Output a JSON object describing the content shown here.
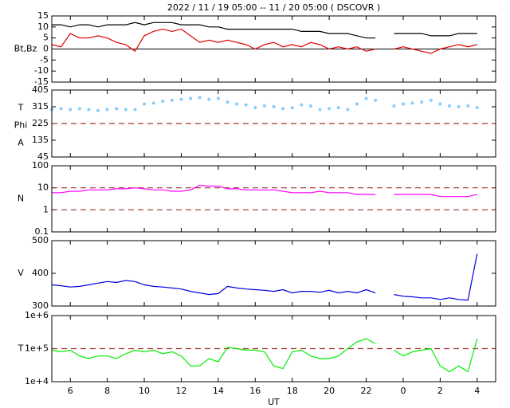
{
  "chart_data": [
    {
      "type": "line",
      "title": "2022 / 11 / 19   05:00 -- 11 / 20   05:00 ( DSCOVR )",
      "ylabel": [
        "Bt,Bz"
      ],
      "x": [
        5,
        5.5,
        6,
        6.5,
        7,
        7.5,
        8,
        8.5,
        9,
        9.5,
        10,
        10.5,
        11,
        11.5,
        12,
        12.5,
        13,
        13.5,
        14,
        14.5,
        15,
        15.5,
        16,
        16.5,
        17,
        17.5,
        18,
        18.5,
        19,
        19.5,
        20,
        20.5,
        21,
        21.5,
        22,
        22.5,
        23,
        23.5,
        24,
        24.5,
        25,
        25.5,
        26,
        26.5,
        27,
        27.5,
        28,
        28.5,
        29
      ],
      "series": [
        {
          "color": "#000000",
          "values": [
            11,
            11,
            10,
            11,
            11,
            10,
            11,
            11,
            11,
            12,
            11,
            12,
            12,
            12,
            11,
            11,
            11,
            10,
            10,
            9,
            9,
            9,
            9,
            9,
            9,
            9,
            9,
            8,
            8,
            8,
            7,
            7,
            7,
            6,
            5,
            5,
            null,
            7,
            7,
            7,
            7,
            6,
            6,
            6,
            7,
            7,
            7,
            null,
            null
          ]
        },
        {
          "color": "#e00000",
          "values": [
            2,
            1,
            7,
            5,
            5,
            6,
            5,
            3,
            2,
            -1,
            6,
            8,
            9,
            8,
            9,
            6,
            3,
            4,
            3,
            4,
            3,
            2,
            0,
            2,
            3,
            1,
            2,
            1,
            3,
            2,
            0,
            1,
            0,
            1,
            -1,
            0,
            null,
            0,
            1,
            0,
            -1,
            -2,
            0,
            1,
            2,
            1,
            2,
            null,
            null
          ]
        }
      ],
      "xlim": [
        5,
        29
      ],
      "ylim": [
        -15,
        15
      ],
      "yticks": [
        -15,
        -10,
        -5,
        0,
        5,
        10,
        15
      ],
      "log": false,
      "zero_line": 0,
      "reflines": []
    },
    {
      "type": "scatter",
      "ylabel": [
        "T",
        "Phi",
        "A"
      ],
      "x": [
        5,
        5.5,
        6,
        6.5,
        7,
        7.5,
        8,
        8.5,
        9,
        9.5,
        10,
        10.5,
        11,
        11.5,
        12,
        12.5,
        13,
        13.5,
        14,
        14.5,
        15,
        15.5,
        16,
        16.5,
        17,
        17.5,
        18,
        18.5,
        19,
        19.5,
        20,
        20.5,
        21,
        21.5,
        22,
        22.5,
        23,
        23.5,
        24,
        24.5,
        25,
        25.5,
        26,
        26.5,
        27,
        27.5,
        28,
        28.5,
        29
      ],
      "series": [
        {
          "color": "#87cefa",
          "values": [
            300,
            305,
            300,
            305,
            300,
            295,
            300,
            305,
            300,
            300,
            330,
            335,
            345,
            350,
            355,
            360,
            365,
            355,
            360,
            340,
            330,
            325,
            310,
            320,
            315,
            305,
            310,
            325,
            320,
            300,
            305,
            310,
            300,
            330,
            360,
            350,
            null,
            320,
            330,
            335,
            340,
            350,
            330,
            320,
            315,
            320,
            310,
            null,
            null
          ]
        }
      ],
      "xlim": [
        5,
        29
      ],
      "ylim": [
        45,
        405
      ],
      "yticks": [
        45,
        135,
        225,
        315,
        405
      ],
      "log": false,
      "reflines": [
        225
      ]
    },
    {
      "type": "line",
      "ylabel": [
        "N"
      ],
      "x": [
        5,
        5.5,
        6,
        6.5,
        7,
        7.5,
        8,
        8.5,
        9,
        9.5,
        10,
        10.5,
        11,
        11.5,
        12,
        12.5,
        13,
        13.5,
        14,
        14.5,
        15,
        15.5,
        16,
        16.5,
        17,
        17.5,
        18,
        18.5,
        19,
        19.5,
        20,
        20.5,
        21,
        21.5,
        22,
        22.5,
        23,
        23.5,
        24,
        24.5,
        25,
        25.5,
        26,
        26.5,
        27,
        27.5,
        28,
        28.5,
        29
      ],
      "series": [
        {
          "color": "#ff00ff",
          "values": [
            6,
            6,
            7,
            7,
            8,
            8,
            8,
            9,
            9,
            10,
            9,
            8,
            8,
            7,
            7,
            8,
            13,
            12,
            12,
            9,
            9,
            8,
            8,
            8,
            8,
            7,
            6,
            6,
            6,
            7,
            6,
            6,
            6,
            5,
            5,
            5,
            null,
            5,
            5,
            5,
            5,
            5,
            4,
            4,
            4,
            4,
            5,
            null,
            null
          ]
        }
      ],
      "xlim": [
        5,
        29
      ],
      "ylim": [
        0.1,
        100
      ],
      "yticks": [
        0.1,
        1,
        10,
        100
      ],
      "log": true,
      "reflines": [
        1,
        10
      ]
    },
    {
      "type": "line",
      "ylabel": [
        "V"
      ],
      "x": [
        5,
        5.5,
        6,
        6.5,
        7,
        7.5,
        8,
        8.5,
        9,
        9.5,
        10,
        10.5,
        11,
        11.5,
        12,
        12.5,
        13,
        13.5,
        14,
        14.5,
        15,
        15.5,
        16,
        16.5,
        17,
        17.5,
        18,
        18.5,
        19,
        19.5,
        20,
        20.5,
        21,
        21.5,
        22,
        22.5,
        23,
        23.5,
        24,
        24.5,
        25,
        25.5,
        26,
        26.5,
        27,
        27.5,
        28,
        28.5,
        29
      ],
      "series": [
        {
          "color": "#0000e0",
          "values": [
            365,
            362,
            358,
            360,
            365,
            370,
            375,
            372,
            378,
            375,
            365,
            360,
            358,
            355,
            352,
            345,
            340,
            335,
            338,
            360,
            355,
            352,
            350,
            348,
            345,
            350,
            340,
            345,
            345,
            342,
            348,
            340,
            345,
            340,
            350,
            340,
            null,
            335,
            330,
            328,
            325,
            325,
            320,
            325,
            320,
            318,
            460,
            null,
            null
          ]
        }
      ],
      "xlim": [
        5,
        29
      ],
      "ylim": [
        300,
        500
      ],
      "yticks": [
        300,
        400,
        500
      ],
      "log": false,
      "reflines": []
    },
    {
      "type": "line",
      "ylabel": [
        "T"
      ],
      "xlabel": "UT",
      "x": [
        5,
        5.5,
        6,
        6.5,
        7,
        7.5,
        8,
        8.5,
        9,
        9.5,
        10,
        10.5,
        11,
        11.5,
        12,
        12.5,
        13,
        13.5,
        14,
        14.5,
        15,
        15.5,
        16,
        16.5,
        17,
        17.5,
        18,
        18.5,
        19,
        19.5,
        20,
        20.5,
        21,
        21.5,
        22,
        22.5,
        23,
        23.5,
        24,
        24.5,
        25,
        25.5,
        26,
        26.5,
        27,
        27.5,
        28,
        28.5,
        29
      ],
      "series": [
        {
          "color": "#00ee00",
          "values": [
            90000,
            80000,
            90000,
            60000,
            50000,
            60000,
            60000,
            50000,
            70000,
            90000,
            80000,
            90000,
            70000,
            80000,
            60000,
            30000,
            30000,
            50000,
            40000,
            110000,
            100000,
            90000,
            90000,
            80000,
            30000,
            25000,
            80000,
            90000,
            60000,
            50000,
            50000,
            60000,
            100000,
            160000,
            200000,
            140000,
            null,
            90000,
            60000,
            80000,
            90000,
            100000,
            30000,
            20000,
            30000,
            20000,
            200000,
            null,
            null
          ]
        }
      ],
      "xlim": [
        5,
        29
      ],
      "ylim": [
        10000,
        1000000
      ],
      "yticks": [
        {
          "value": 10000,
          "label": "1e+4"
        },
        {
          "value": 100000,
          "label": "1e+5"
        },
        {
          "value": 1000000,
          "label": "1e+6"
        }
      ],
      "log": true,
      "reflines": [
        100000
      ],
      "xticks": [
        6,
        8,
        10,
        12,
        14,
        16,
        18,
        20,
        22,
        {
          "value": 24,
          "label": "0"
        },
        {
          "value": 26,
          "label": "2"
        },
        {
          "value": 28,
          "label": "4"
        }
      ]
    }
  ]
}
